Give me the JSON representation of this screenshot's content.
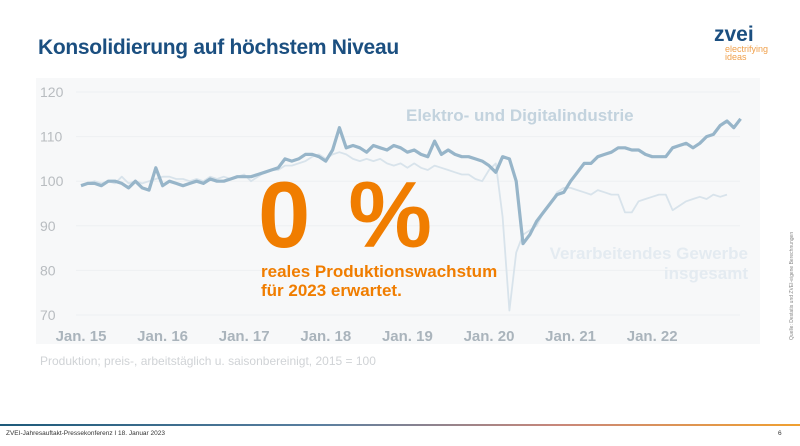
{
  "title": "Konsolidierung auf höchstem Niveau",
  "logo": {
    "name": "zvei",
    "tagline1": "electrifying",
    "tagline2": "ideas"
  },
  "highlight": {
    "value": "0 %",
    "line1": "reales Produktionswachstum",
    "line2": "für 2023 erwartet.",
    "color": "#f07d00"
  },
  "note": "Produktion; preis-, arbeitstäglich u. saisonbereinigt, 2015 = 100",
  "source": "Quelle: Destatis und ZVEI-eigene Berechnungen",
  "footer": {
    "text": "ZVEI-Jahresauftakt-Pressekonferenz I 18. Januar 2023",
    "page": "6"
  },
  "chart_data": {
    "type": "line",
    "x_start": "Jan. 15",
    "x_frequency": "monthly",
    "x_ticks": [
      "Jan. 15",
      "Jan. 16",
      "Jan. 17",
      "Jan. 18",
      "Jan. 19",
      "Jan. 20",
      "Jan. 21",
      "Jan. 22"
    ],
    "y_ticks": [
      70,
      80,
      90,
      100,
      110,
      120
    ],
    "ylim": [
      70,
      120
    ],
    "grid": true,
    "series": [
      {
        "name": "Elektro- und Digitalindustrie",
        "color": "#97b5c9",
        "values": [
          99,
          99.5,
          99.5,
          99,
          100,
          100,
          99.5,
          98.5,
          100,
          98.5,
          98,
          103,
          99,
          100,
          99.5,
          99,
          99.5,
          100,
          99.5,
          100.5,
          100,
          100,
          100.5,
          101,
          101,
          101,
          101.5,
          102,
          102.5,
          103,
          105,
          104.5,
          105,
          106,
          106,
          105.5,
          104.5,
          107,
          112,
          107.5,
          108,
          107.5,
          106.5,
          108,
          107.5,
          107,
          108,
          107.5,
          106.5,
          107,
          106,
          105.5,
          109,
          106,
          107,
          106,
          105.5,
          105.5,
          105,
          104.5,
          103.5,
          102,
          105.5,
          105,
          100,
          86,
          88,
          91,
          93,
          95,
          97,
          97.5,
          100,
          102,
          104,
          104,
          105.5,
          106,
          106.5,
          107.5,
          107.5,
          107,
          107,
          106,
          105.5,
          105.5,
          105.5,
          107.5,
          108,
          108.5,
          107.5,
          108.5,
          110,
          110.5,
          112.5,
          113.5,
          112,
          114
        ]
      },
      {
        "name": "Verarbeitendes Gewerbe insgesamt",
        "name_lines": [
          "Verarbeitendes Gewerbe",
          "insgesamt"
        ],
        "color": "#d8e3eb",
        "values": [
          99,
          99.5,
          100,
          99.5,
          100,
          99.5,
          101,
          99.5,
          100,
          99.5,
          100,
          100.5,
          101,
          101,
          100.5,
          100.5,
          100,
          100.5,
          100,
          101,
          100.5,
          101,
          100.5,
          101,
          101.5,
          100,
          101,
          102,
          102.5,
          102.5,
          103.5,
          103.5,
          104,
          104.5,
          105.5,
          106,
          105,
          106,
          106.5,
          106,
          105,
          104.5,
          105,
          104.5,
          105,
          104,
          103.5,
          104,
          103,
          104,
          103,
          102.5,
          103.5,
          103,
          102.5,
          102,
          101.5,
          101.5,
          100.5,
          100,
          102.5,
          104,
          92,
          71,
          84,
          88,
          89,
          90,
          93,
          95,
          97.5,
          98.5,
          98.5,
          98,
          97.5,
          97,
          98,
          97.5,
          97,
          97,
          93,
          93,
          95.5,
          96,
          96.5,
          97,
          97,
          93.5,
          94.5,
          95.5,
          96,
          96.5,
          96,
          97,
          96.5,
          97
        ]
      }
    ]
  }
}
